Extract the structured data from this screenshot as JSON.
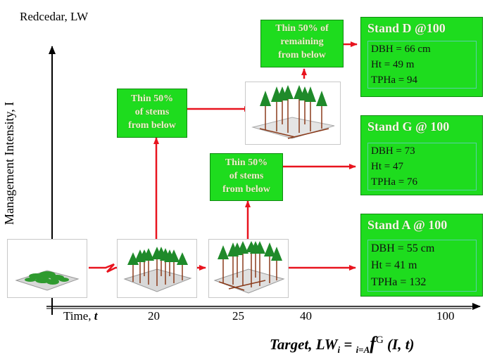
{
  "title": "Redcedar, LW",
  "y_axis_label": "Management Intensity, I",
  "x_axis": {
    "label_prefix": "Time, ",
    "label_var": "t",
    "ticks": [
      "20",
      "25",
      "40",
      "100"
    ]
  },
  "thin_boxes": [
    {
      "lines": [
        "Thin 50%",
        "of stems",
        "from below"
      ]
    },
    {
      "lines": [
        "Thin 50%",
        "of stems",
        "from below"
      ]
    },
    {
      "lines": [
        "Thin 50% of",
        "remaining",
        "from below"
      ]
    }
  ],
  "stands": [
    {
      "title": "Stand D @100",
      "lines": [
        "DBH = 66 cm",
        "Ht = 49 m",
        "TPHa  = 94"
      ]
    },
    {
      "title": "Stand G @ 100",
      "lines": [
        "DBH = 73",
        "Ht = 47",
        "TPHa  = 76"
      ]
    },
    {
      "title": "Stand A @ 100",
      "lines": [
        "DBH = 55 cm",
        "Ht = 41 m",
        "TPHa  = 132"
      ]
    }
  ],
  "target_formula": {
    "word": "Target",
    "comma": ", ",
    "lhs": "LW",
    "lhs_sub": "i",
    "equals": " = ",
    "under": "i=A",
    "f": "f",
    "sup": "G",
    "args": " (I, t)"
  },
  "colors": {
    "arrow": "#e8141e",
    "box_green": "#1edc1e",
    "axis": "#000000"
  }
}
